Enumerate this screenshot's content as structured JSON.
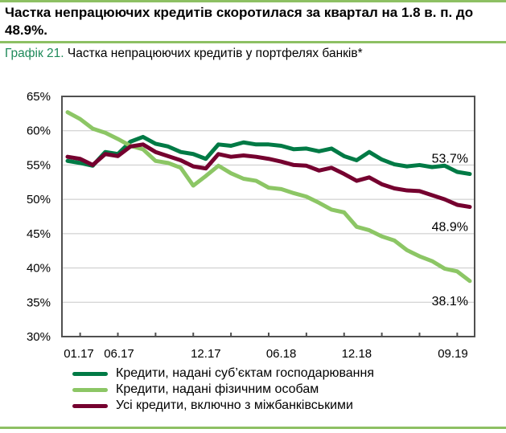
{
  "headline": "Частка непрацюючих кредитів скоротилася за квартал на 1.8 в. п. до 48.9%.",
  "subtitle": {
    "number": "Графік 21.",
    "text": "Частка непрацюючих кредитів у портфелях банків*"
  },
  "colors": {
    "rule": "#8dc063",
    "corporate": "#007a45",
    "households": "#8cc665",
    "total": "#75002f"
  },
  "chart_data": {
    "type": "line",
    "title": "",
    "xlabel": "",
    "ylabel": "",
    "ylim": [
      30,
      65
    ],
    "yticks": [
      "30%",
      "35%",
      "40%",
      "45%",
      "50%",
      "55%",
      "60%",
      "65%"
    ],
    "xtick_labels": [
      {
        "label": "01.17",
        "index": 0
      },
      {
        "label": "06.17",
        "index": 5
      },
      {
        "label": "12.17",
        "index": 11
      },
      {
        "label": "06.18",
        "index": 17
      },
      {
        "label": "12.18",
        "index": 23
      },
      {
        "label": "09.19",
        "index": 32
      }
    ],
    "x": [
      "01.17",
      "02.17",
      "03.17",
      "04.17",
      "05.17",
      "06.17",
      "07.17",
      "08.17",
      "09.17",
      "10.17",
      "11.17",
      "12.17",
      "01.18",
      "02.18",
      "03.18",
      "04.18",
      "05.18",
      "06.18",
      "07.18",
      "08.18",
      "09.18",
      "10.18",
      "11.18",
      "12.18",
      "01.19",
      "02.19",
      "03.19",
      "04.19",
      "05.19",
      "06.19",
      "07.19",
      "08.19",
      "09.19"
    ],
    "grid": true,
    "legend_position": "bottom",
    "series": [
      {
        "name": "Кредити, надані суб’єктам господарювання",
        "color_key": "corporate",
        "end_label": "53.7%",
        "values": [
          55.6,
          55.3,
          54.9,
          56.9,
          56.6,
          58.4,
          59.1,
          58.1,
          57.7,
          56.9,
          56.6,
          55.9,
          58.0,
          57.8,
          58.3,
          58.0,
          58.0,
          57.8,
          57.3,
          57.4,
          57.0,
          57.4,
          56.3,
          55.7,
          56.9,
          55.8,
          55.1,
          54.8,
          55.0,
          54.7,
          54.9,
          54.0,
          53.7
        ]
      },
      {
        "name": "Кредити, надані фізичним особам",
        "color_key": "households",
        "end_label": "38.1%",
        "values": [
          62.7,
          61.7,
          60.3,
          59.7,
          58.8,
          57.8,
          57.3,
          55.6,
          55.3,
          54.6,
          52.0,
          53.4,
          54.9,
          53.8,
          53.0,
          52.7,
          51.7,
          51.5,
          50.9,
          50.4,
          49.5,
          48.5,
          48.1,
          46.0,
          45.5,
          44.6,
          44.0,
          42.6,
          41.7,
          41.0,
          39.9,
          39.5,
          38.1
        ]
      },
      {
        "name": "Усі кредити, включно з міжбанківськими",
        "color_key": "total",
        "end_label": "48.9%",
        "values": [
          56.2,
          55.9,
          55.0,
          56.6,
          56.3,
          57.7,
          58.0,
          56.9,
          56.3,
          55.7,
          54.8,
          54.5,
          56.6,
          56.2,
          56.4,
          56.2,
          55.9,
          55.5,
          55.0,
          54.9,
          54.2,
          54.6,
          53.7,
          52.7,
          53.2,
          52.2,
          51.6,
          51.3,
          51.2,
          50.6,
          50.0,
          49.2,
          48.9
        ]
      }
    ]
  }
}
